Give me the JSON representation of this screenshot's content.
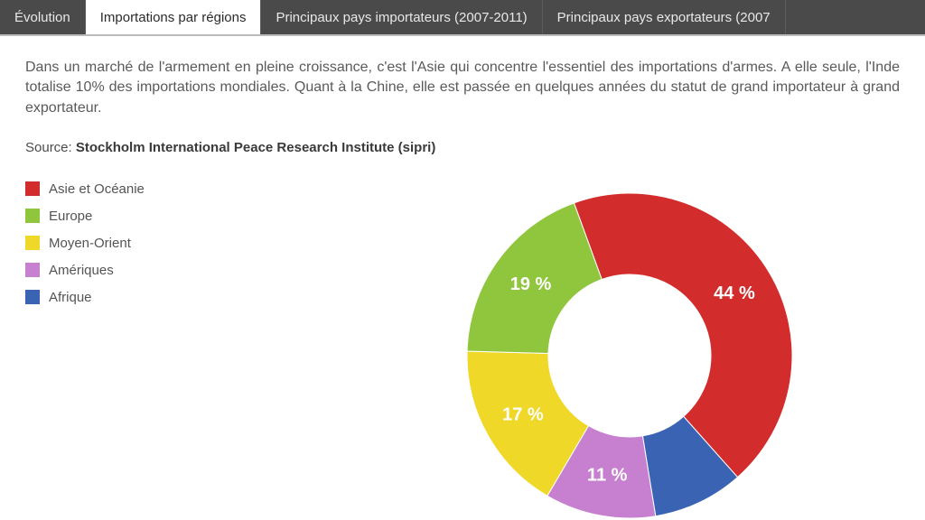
{
  "tabs": [
    {
      "label": "Évolution",
      "active": false
    },
    {
      "label": "Importations par régions",
      "active": true
    },
    {
      "label": "Principaux pays importateurs (2007-2011)",
      "active": false
    },
    {
      "label": "Principaux pays exportateurs (2007",
      "active": false
    }
  ],
  "intro_text": "Dans un marché de l'armement en pleine croissance, c'est l'Asie qui concentre l'essentiel des importations d'armes. A elle seule, l'Inde totalise 10% des importations mondiales. Quant à la Chine, elle est passée en quelques années du statut de grand importateur à grand exportateur.",
  "source_prefix": "Source: ",
  "source_bold": "Stockholm International Peace Research Institute (sipri)",
  "chart": {
    "type": "donut",
    "outer_radius": 180,
    "inner_radius": 90,
    "center_fill": "#ffffff",
    "background": "#ffffff",
    "start_angle_deg": -20,
    "label_fontsize": 20,
    "label_color": "#ffffff",
    "slices": [
      {
        "name": "Asie et Océanie",
        "value": 44,
        "color": "#d22c2c",
        "label": "44 %",
        "show_label": true
      },
      {
        "name": "Afrique",
        "value": 9,
        "color": "#3b63b4",
        "label": "",
        "show_label": false
      },
      {
        "name": "Amériques",
        "value": 11,
        "color": "#c77fcf",
        "label": "11 %",
        "show_label": true
      },
      {
        "name": "Moyen-Orient",
        "value": 17,
        "color": "#f0d829",
        "label": "17 %",
        "show_label": true
      },
      {
        "name": "Europe",
        "value": 19,
        "color": "#8fc63e",
        "label": "19 %",
        "show_label": true
      }
    ],
    "legend_order": [
      0,
      4,
      3,
      2,
      1
    ]
  }
}
